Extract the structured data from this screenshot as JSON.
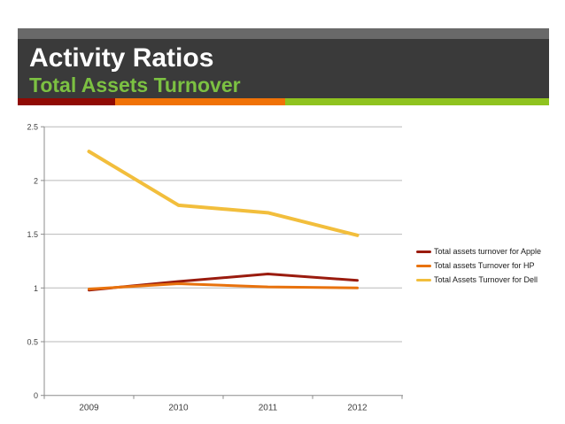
{
  "slide": {
    "title": "Activity Ratios",
    "subtitle": "Total Assets Turnover"
  },
  "colors": {
    "header_top_strip": "#696969",
    "header_background": "#3a3a3a",
    "title_text": "#ffffff",
    "subtitle_text": "#7cc142",
    "stripe_segments": [
      "#8f0a04",
      "#f07207",
      "#8fc31f"
    ],
    "axis_line": "#8c8c8c",
    "gridline": "#b9b9b9",
    "tick_label_text": "#3f3f3f",
    "legend_text": "#1a1a1a"
  },
  "chart_data": {
    "type": "line",
    "categories": [
      "2009",
      "2010",
      "2011",
      "2012"
    ],
    "series": [
      {
        "name": "Total assets turnover for Apple",
        "color": "#9a1b0e",
        "values": [
          0.98,
          1.06,
          1.13,
          1.07
        ]
      },
      {
        "name": "Total assets Turnover for HP",
        "color": "#e8720d",
        "values": [
          0.99,
          1.04,
          1.01,
          1.0
        ]
      },
      {
        "name": "Total Assets Turnover for Dell",
        "color": "#f2be3c",
        "values": [
          2.27,
          1.77,
          1.7,
          1.49
        ]
      }
    ],
    "ylim": [
      0,
      2.5
    ],
    "y_ticks": [
      2.5,
      2,
      1.5,
      1,
      0.5,
      0
    ],
    "grid": true,
    "legend_position": "right",
    "title": ""
  }
}
